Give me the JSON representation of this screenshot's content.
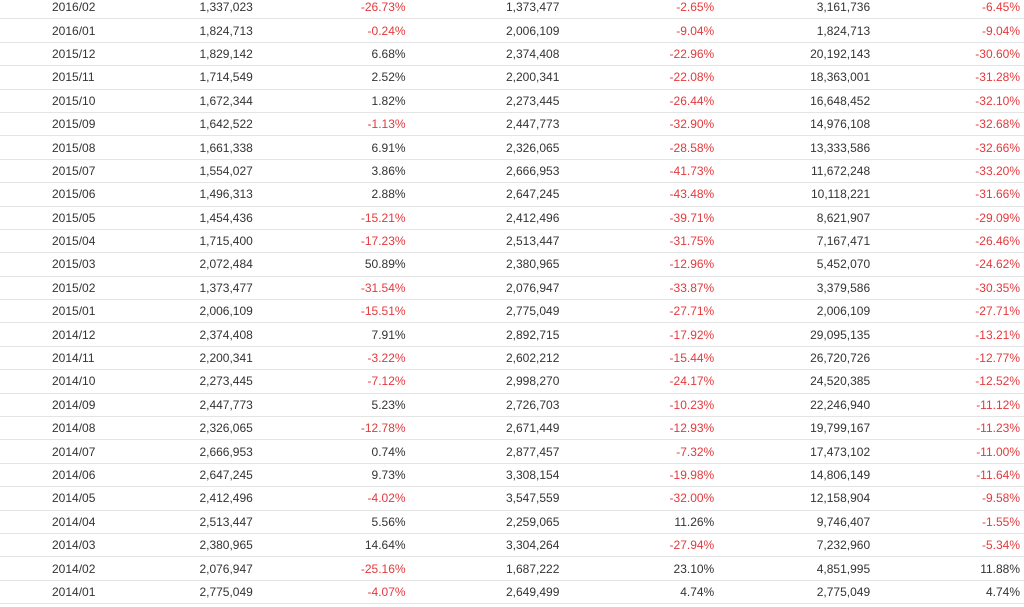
{
  "colors": {
    "text": "#333333",
    "negative": "#e4393c",
    "border": "#e4e4e4"
  },
  "table": {
    "rows": [
      [
        "2016/02",
        "1,337,023",
        "-26.73%",
        "1,373,477",
        "-2.65%",
        "3,161,736",
        "-6.45%"
      ],
      [
        "2016/01",
        "1,824,713",
        "-0.24%",
        "2,006,109",
        "-9.04%",
        "1,824,713",
        "-9.04%"
      ],
      [
        "2015/12",
        "1,829,142",
        "6.68%",
        "2,374,408",
        "-22.96%",
        "20,192,143",
        "-30.60%"
      ],
      [
        "2015/11",
        "1,714,549",
        "2.52%",
        "2,200,341",
        "-22.08%",
        "18,363,001",
        "-31.28%"
      ],
      [
        "2015/10",
        "1,672,344",
        "1.82%",
        "2,273,445",
        "-26.44%",
        "16,648,452",
        "-32.10%"
      ],
      [
        "2015/09",
        "1,642,522",
        "-1.13%",
        "2,447,773",
        "-32.90%",
        "14,976,108",
        "-32.68%"
      ],
      [
        "2015/08",
        "1,661,338",
        "6.91%",
        "2,326,065",
        "-28.58%",
        "13,333,586",
        "-32.66%"
      ],
      [
        "2015/07",
        "1,554,027",
        "3.86%",
        "2,666,953",
        "-41.73%",
        "11,672,248",
        "-33.20%"
      ],
      [
        "2015/06",
        "1,496,313",
        "2.88%",
        "2,647,245",
        "-43.48%",
        "10,118,221",
        "-31.66%"
      ],
      [
        "2015/05",
        "1,454,436",
        "-15.21%",
        "2,412,496",
        "-39.71%",
        "8,621,907",
        "-29.09%"
      ],
      [
        "2015/04",
        "1,715,400",
        "-17.23%",
        "2,513,447",
        "-31.75%",
        "7,167,471",
        "-26.46%"
      ],
      [
        "2015/03",
        "2,072,484",
        "50.89%",
        "2,380,965",
        "-12.96%",
        "5,452,070",
        "-24.62%"
      ],
      [
        "2015/02",
        "1,373,477",
        "-31.54%",
        "2,076,947",
        "-33.87%",
        "3,379,586",
        "-30.35%"
      ],
      [
        "2015/01",
        "2,006,109",
        "-15.51%",
        "2,775,049",
        "-27.71%",
        "2,006,109",
        "-27.71%"
      ],
      [
        "2014/12",
        "2,374,408",
        "7.91%",
        "2,892,715",
        "-17.92%",
        "29,095,135",
        "-13.21%"
      ],
      [
        "2014/11",
        "2,200,341",
        "-3.22%",
        "2,602,212",
        "-15.44%",
        "26,720,726",
        "-12.77%"
      ],
      [
        "2014/10",
        "2,273,445",
        "-7.12%",
        "2,998,270",
        "-24.17%",
        "24,520,385",
        "-12.52%"
      ],
      [
        "2014/09",
        "2,447,773",
        "5.23%",
        "2,726,703",
        "-10.23%",
        "22,246,940",
        "-11.12%"
      ],
      [
        "2014/08",
        "2,326,065",
        "-12.78%",
        "2,671,449",
        "-12.93%",
        "19,799,167",
        "-11.23%"
      ],
      [
        "2014/07",
        "2,666,953",
        "0.74%",
        "2,877,457",
        "-7.32%",
        "17,473,102",
        "-11.00%"
      ],
      [
        "2014/06",
        "2,647,245",
        "9.73%",
        "3,308,154",
        "-19.98%",
        "14,806,149",
        "-11.64%"
      ],
      [
        "2014/05",
        "2,412,496",
        "-4.02%",
        "3,547,559",
        "-32.00%",
        "12,158,904",
        "-9.58%"
      ],
      [
        "2014/04",
        "2,513,447",
        "5.56%",
        "2,259,065",
        "11.26%",
        "9,746,407",
        "-1.55%"
      ],
      [
        "2014/03",
        "2,380,965",
        "14.64%",
        "3,304,264",
        "-27.94%",
        "7,232,960",
        "-5.34%"
      ],
      [
        "2014/02",
        "2,076,947",
        "-25.16%",
        "1,687,222",
        "23.10%",
        "4,851,995",
        "11.88%"
      ],
      [
        "2014/01",
        "2,775,049",
        "-4.07%",
        "2,649,499",
        "4.74%",
        "2,775,049",
        "4.74%"
      ]
    ]
  }
}
